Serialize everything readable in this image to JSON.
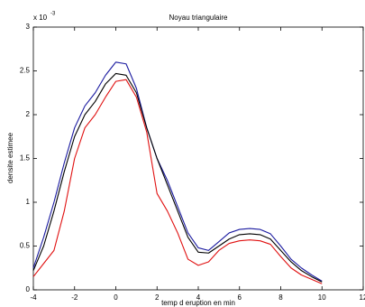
{
  "chart_data": {
    "type": "line",
    "title": "Noyau triangulaire",
    "x_label": "temp d  eruption en min",
    "y_label": "densite estimee",
    "y_multiplier": "x 10",
    "y_exponent": "-3",
    "x": [
      -4,
      -3.5,
      -3,
      -2.5,
      -2,
      -1.5,
      -1,
      -0.5,
      0,
      0.5,
      1,
      1.5,
      2,
      2.5,
      3,
      3.5,
      4,
      4.5,
      5,
      5.5,
      6,
      6.5,
      7,
      7.5,
      8,
      8.5,
      9,
      9.5,
      10
    ],
    "series": [
      {
        "color": "#1a1aa0",
        "values": [
          0.25,
          0.6,
          1.0,
          1.45,
          1.85,
          2.1,
          2.25,
          2.45,
          2.6,
          2.58,
          2.3,
          1.85,
          1.5,
          1.25,
          0.95,
          0.65,
          0.48,
          0.45,
          0.55,
          0.65,
          0.69,
          0.7,
          0.69,
          0.64,
          0.5,
          0.35,
          0.25,
          0.17,
          0.1
        ]
      },
      {
        "color": "#000000",
        "values": [
          0.22,
          0.5,
          0.9,
          1.35,
          1.75,
          2.0,
          2.15,
          2.35,
          2.47,
          2.45,
          2.25,
          1.85,
          1.5,
          1.2,
          0.9,
          0.6,
          0.43,
          0.42,
          0.5,
          0.58,
          0.63,
          0.64,
          0.63,
          0.58,
          0.45,
          0.32,
          0.22,
          0.15,
          0.09
        ]
      },
      {
        "color": "#e01010",
        "values": [
          0.15,
          0.3,
          0.45,
          0.9,
          1.5,
          1.85,
          2.0,
          2.2,
          2.38,
          2.4,
          2.2,
          1.8,
          1.1,
          0.9,
          0.65,
          0.35,
          0.28,
          0.32,
          0.45,
          0.53,
          0.56,
          0.57,
          0.56,
          0.52,
          0.38,
          0.25,
          0.17,
          0.12,
          0.07
        ]
      }
    ],
    "xlim": [
      -4,
      12
    ],
    "xticks": [
      -4,
      -2,
      0,
      2,
      4,
      6,
      8,
      10,
      12
    ],
    "ylim": [
      0,
      3
    ],
    "yticks": [
      0,
      0.5,
      1,
      1.5,
      2,
      2.5,
      3
    ]
  }
}
